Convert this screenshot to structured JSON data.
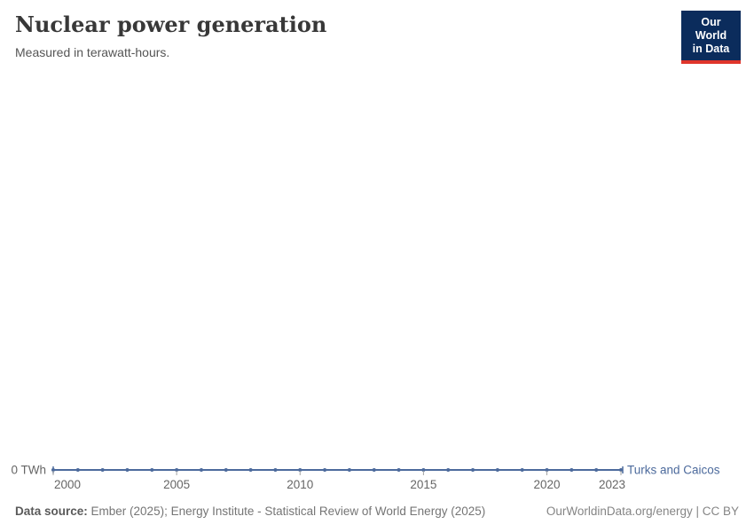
{
  "header": {
    "title": "Nuclear power generation",
    "subtitle": "Measured in terawatt-hours."
  },
  "logo": {
    "line1": "Our World",
    "line2": "in Data",
    "bg_color": "#0b2c5c",
    "accent_color": "#e0352b"
  },
  "chart_data": {
    "type": "line",
    "title": "Nuclear power generation",
    "ylabel": "terawatt-hours",
    "x": [
      2000,
      2001,
      2002,
      2003,
      2004,
      2005,
      2006,
      2007,
      2008,
      2009,
      2010,
      2011,
      2012,
      2013,
      2014,
      2015,
      2016,
      2017,
      2018,
      2019,
      2020,
      2021,
      2022,
      2023
    ],
    "series": [
      {
        "name": "Turks and Caicos",
        "values": [
          0,
          0,
          0,
          0,
          0,
          0,
          0,
          0,
          0,
          0,
          0,
          0,
          0,
          0,
          0,
          0,
          0,
          0,
          0,
          0,
          0,
          0,
          0,
          0
        ]
      }
    ],
    "line_color": "#4c6a9c",
    "tick_color": "#a3a3a3",
    "tick_label_color": "#666666",
    "x_ticks": [
      {
        "value": 2000,
        "label": "2000"
      },
      {
        "value": 2005,
        "label": "2005"
      },
      {
        "value": 2010,
        "label": "2010"
      },
      {
        "value": 2015,
        "label": "2015"
      },
      {
        "value": 2020,
        "label": "2020"
      },
      {
        "value": 2023,
        "label": "2023"
      }
    ],
    "ytick_label": "0 TWh",
    "ylim": [
      0,
      0
    ],
    "grid": false,
    "legend_position": "end-of-line"
  },
  "footer": {
    "source_label": "Data source:",
    "source_text": " Ember (2025); Energy Institute - Statistical Review of World Energy (2025)",
    "link_text": "OurWorldinData.org/energy | CC BY"
  }
}
